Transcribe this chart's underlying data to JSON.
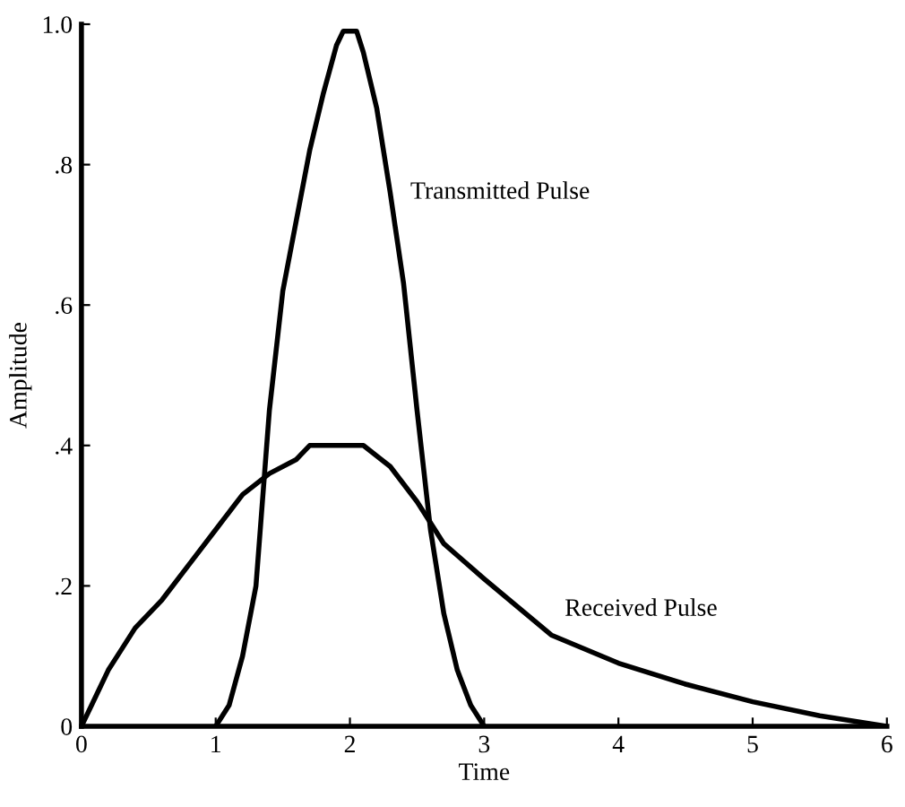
{
  "chart_data": {
    "type": "line",
    "xlabel": "Time",
    "ylabel": "Amplitude",
    "xlim": [
      0,
      6
    ],
    "xticks": [
      0,
      1,
      2,
      3,
      4,
      5,
      6
    ],
    "ylim": [
      0,
      1.0
    ],
    "yticks": [
      0,
      {
        "value": 0.2,
        "label": ".2"
      },
      {
        "value": 0.4,
        "label": ".4"
      },
      {
        "value": 0.6,
        "label": ".6"
      },
      {
        "value": 0.8,
        "label": ".8"
      },
      {
        "value": 1.0,
        "label": "1.0"
      }
    ],
    "grid": false,
    "legend": false,
    "marker": "none",
    "line_style": "solid",
    "series": [
      {
        "name": "Transmitted Pulse",
        "color": "#000000",
        "x": [
          1.0,
          1.1,
          1.2,
          1.3,
          1.4,
          1.5,
          1.6,
          1.7,
          1.8,
          1.9,
          1.95,
          2.05,
          2.1,
          2.2,
          2.3,
          2.4,
          2.5,
          2.6,
          2.7,
          2.8,
          2.9,
          3.0
        ],
        "values": [
          0,
          0.03,
          0.1,
          0.2,
          0.45,
          0.62,
          0.72,
          0.82,
          0.9,
          0.97,
          0.99,
          0.99,
          0.96,
          0.88,
          0.76,
          0.63,
          0.45,
          0.28,
          0.16,
          0.08,
          0.03,
          0
        ]
      },
      {
        "name": "Received Pulse",
        "color": "#000000",
        "x": [
          0,
          0.1,
          0.2,
          0.3,
          0.4,
          0.6,
          0.8,
          1.0,
          1.2,
          1.4,
          1.6,
          1.7,
          2.1,
          2.3,
          2.5,
          2.7,
          3.0,
          3.5,
          4.0,
          4.5,
          5.0,
          5.5,
          6.0
        ],
        "values": [
          0,
          0.04,
          0.08,
          0.11,
          0.14,
          0.18,
          0.23,
          0.28,
          0.33,
          0.36,
          0.38,
          0.4,
          0.4,
          0.37,
          0.32,
          0.26,
          0.21,
          0.13,
          0.09,
          0.06,
          0.035,
          0.015,
          0
        ]
      }
    ]
  }
}
